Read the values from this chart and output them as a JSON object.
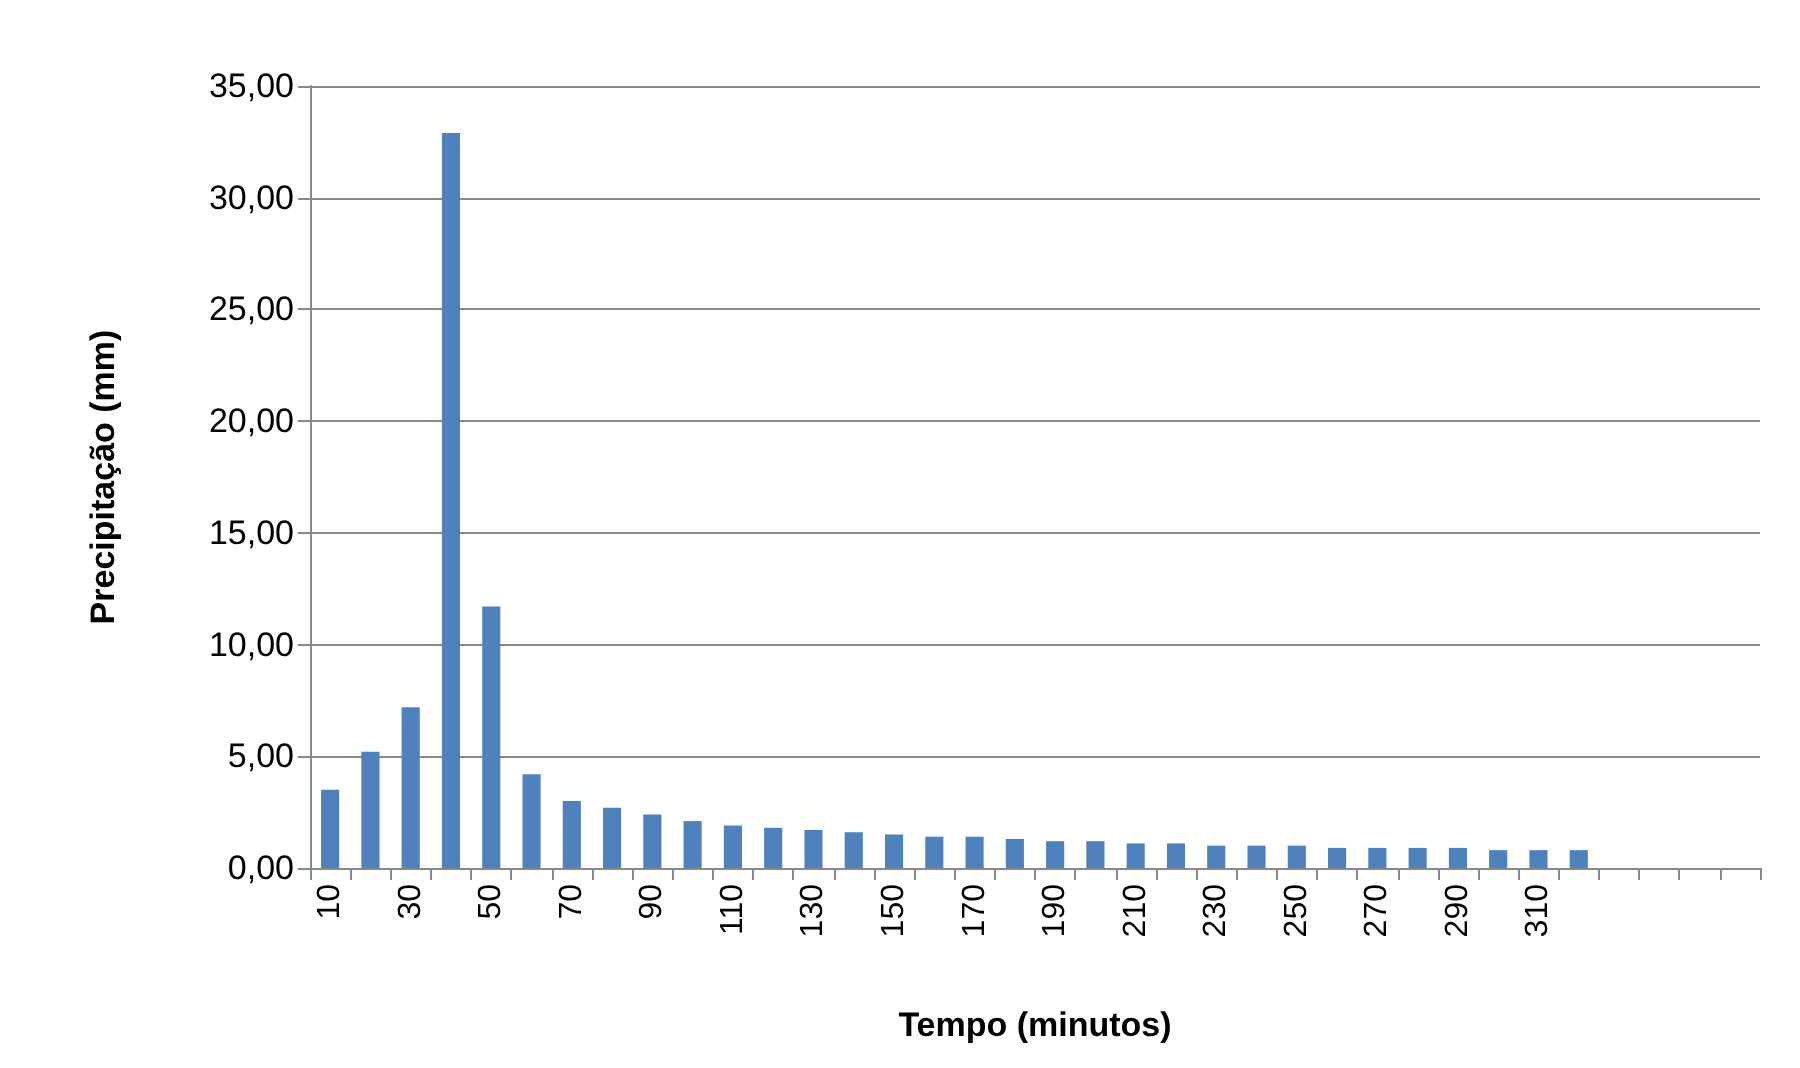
{
  "chart_data": {
    "type": "bar",
    "xlabel": "Tempo (minutos)",
    "ylabel": "Precipitação (mm)",
    "categories": [
      "10",
      null,
      "30",
      null,
      "50",
      null,
      "70",
      null,
      "90",
      null,
      "110",
      null,
      "130",
      null,
      "150",
      null,
      "170",
      null,
      "190",
      null,
      "210",
      null,
      "230",
      null,
      "250",
      null,
      "270",
      null,
      "290",
      null,
      "310",
      null,
      null,
      null,
      null,
      null
    ],
    "values": [
      3.5,
      5.2,
      7.2,
      32.9,
      11.7,
      4.2,
      3.0,
      2.7,
      2.4,
      2.1,
      1.9,
      1.8,
      1.7,
      1.6,
      1.5,
      1.4,
      1.4,
      1.3,
      1.2,
      1.2,
      1.1,
      1.1,
      1.0,
      1.0,
      1.0,
      0.9,
      0.9,
      0.9,
      0.9,
      0.8,
      0.8,
      0.8,
      null,
      null,
      null,
      null
    ],
    "color": "#4f81bd",
    "ylim": [
      0,
      35
    ],
    "yticks": [
      {
        "value": 0,
        "label": "0,00"
      },
      {
        "value": 5,
        "label": "5,00"
      },
      {
        "value": 10,
        "label": "10,00"
      },
      {
        "value": 15,
        "label": "15,00"
      },
      {
        "value": 20,
        "label": "20,00"
      },
      {
        "value": 25,
        "label": "25,00"
      },
      {
        "value": 30,
        "label": "30,00"
      },
      {
        "value": 35,
        "label": "35,00"
      }
    ],
    "grid": "y"
  }
}
